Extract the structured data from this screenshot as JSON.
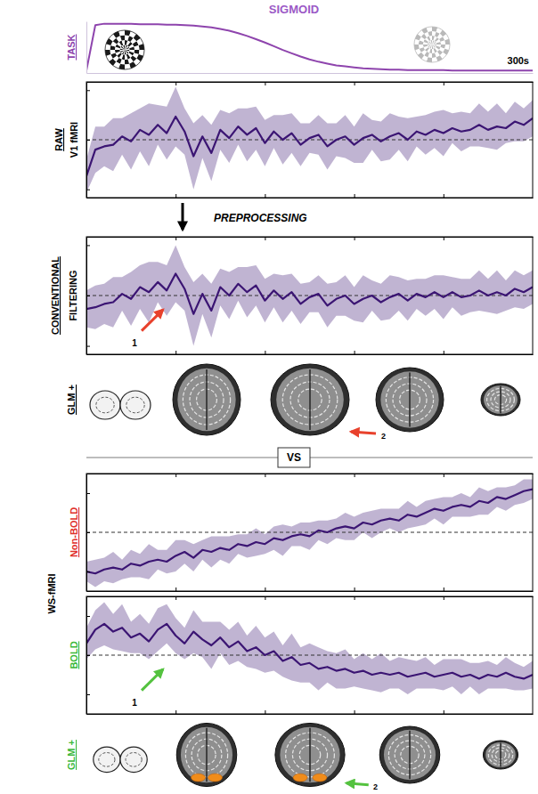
{
  "title": "SIGMOID",
  "labels": {
    "preprocessing": "PREPROCESSING",
    "vs": "VS",
    "ws_fmri": "WS-fMRI"
  },
  "chart_data": [
    {
      "type": "line",
      "y_label": [
        "TASK"
      ],
      "color": "#8e44ad",
      "tick_labels": false,
      "xlim": [
        0,
        300
      ],
      "ylim": [
        -0.05,
        1.05
      ],
      "x": [
        0,
        6,
        12,
        18,
        24,
        30,
        36,
        42,
        48,
        54,
        60,
        66,
        72,
        78,
        84,
        90,
        96,
        102,
        108,
        114,
        120,
        126,
        132,
        138,
        144,
        150,
        156,
        162,
        168,
        174,
        180,
        186,
        192,
        198,
        204,
        210,
        216,
        222,
        228,
        234,
        240,
        246,
        252,
        258,
        264,
        270,
        276,
        282,
        288,
        294,
        300
      ],
      "values": [
        0,
        0.97,
        1.0,
        1.0,
        1.0,
        1.0,
        0.99,
        0.99,
        0.99,
        0.98,
        0.98,
        0.97,
        0.96,
        0.94,
        0.92,
        0.89,
        0.85,
        0.8,
        0.74,
        0.67,
        0.6,
        0.52,
        0.44,
        0.37,
        0.3,
        0.24,
        0.19,
        0.15,
        0.11,
        0.09,
        0.07,
        0.05,
        0.04,
        0.03,
        0.02,
        0.02,
        0.01,
        0.01,
        0.01,
        0.01,
        0.01,
        0,
        0,
        0,
        0,
        0,
        0,
        0,
        0,
        0,
        0
      ],
      "annotations": [
        {
          "text": "300s"
        }
      ]
    },
    {
      "type": "line",
      "y_label": [
        "RAW",
        "V1 fMRI"
      ],
      "color": "#3b1573",
      "tick_labels": false,
      "xlim": [
        0,
        300
      ],
      "ylim": [
        -3.5,
        3.5
      ],
      "xticks": [
        60,
        120,
        180,
        240
      ],
      "yticks": [
        -3,
        0,
        3
      ],
      "baseline": 0,
      "x": [
        0,
        6,
        12,
        18,
        24,
        30,
        36,
        42,
        48,
        54,
        60,
        66,
        72,
        78,
        84,
        90,
        96,
        102,
        108,
        114,
        120,
        126,
        132,
        138,
        144,
        150,
        156,
        162,
        168,
        174,
        180,
        186,
        192,
        198,
        204,
        210,
        216,
        222,
        228,
        234,
        240,
        246,
        252,
        258,
        264,
        270,
        276,
        282,
        288,
        294,
        300
      ],
      "values": [
        -2.2,
        -0.6,
        -0.4,
        -0.3,
        0.2,
        -0.1,
        0.6,
        0.3,
        0.9,
        0.4,
        1.4,
        0.5,
        -1.0,
        0.2,
        -0.8,
        0.6,
        0.1,
        0.8,
        0.3,
        0.7,
        -0.2,
        0.5,
        0.0,
        0.4,
        -0.3,
        0.1,
        0.3,
        -0.4,
        0.0,
        0.2,
        -0.3,
        0.1,
        0.3,
        -0.1,
        0.2,
        0.4,
        0.0,
        0.5,
        0.3,
        0.6,
        0.4,
        0.7,
        0.5,
        0.6,
        0.9,
        0.6,
        0.8,
        0.7,
        1.1,
        0.9,
        1.3
      ],
      "error": [
        1.0,
        1.4,
        1.2,
        1.6,
        1.1,
        1.7,
        1.3,
        1.9,
        1.2,
        1.6,
        1.8,
        1.4,
        2.0,
        1.3,
        1.7,
        1.2,
        1.5,
        1.1,
        1.6,
        1.3,
        1.4,
        1.0,
        1.5,
        1.2,
        1.3,
        0.9,
        1.2,
        1.4,
        1.0,
        1.3,
        1.1,
        1.5,
        0.9,
        1.2,
        1.4,
        1.0,
        1.3,
        0.9,
        1.2,
        1.1,
        1.4,
        0.9,
        1.2,
        1.0,
        1.3,
        1.1,
        1.4,
        0.9,
        1.2,
        1.0,
        1.1
      ]
    },
    {
      "type": "line",
      "y_label": [
        "CONVENTIONAL",
        "FILTERING"
      ],
      "color": "#3b1573",
      "tick_labels": false,
      "xlim": [
        0,
        300
      ],
      "ylim": [
        -3.5,
        3.5
      ],
      "xticks": [
        60,
        120,
        180,
        240
      ],
      "yticks": [
        -3,
        0,
        3
      ],
      "baseline": 0,
      "x": [
        0,
        6,
        12,
        18,
        24,
        30,
        36,
        42,
        48,
        54,
        60,
        66,
        72,
        78,
        84,
        90,
        96,
        102,
        108,
        114,
        120,
        126,
        132,
        138,
        144,
        150,
        156,
        162,
        168,
        174,
        180,
        186,
        192,
        198,
        204,
        210,
        216,
        222,
        228,
        234,
        240,
        246,
        252,
        258,
        264,
        270,
        276,
        282,
        288,
        294,
        300
      ],
      "values": [
        -0.8,
        -0.7,
        -0.5,
        -0.4,
        0.1,
        -0.2,
        0.5,
        0.2,
        0.8,
        0.3,
        1.3,
        0.4,
        -1.1,
        0.1,
        -0.9,
        0.5,
        0.0,
        0.7,
        0.2,
        0.6,
        -0.3,
        0.3,
        -0.2,
        0.2,
        -0.5,
        -0.1,
        0.1,
        -0.6,
        -0.2,
        0.0,
        -0.5,
        -0.2,
        0.0,
        -0.4,
        -0.1,
        0.1,
        -0.3,
        0.1,
        -0.1,
        0.2,
        -0.1,
        0.2,
        -0.1,
        0.0,
        0.3,
        0.0,
        0.2,
        0.0,
        0.4,
        0.2,
        0.5
      ],
      "error": [
        1.1,
        1.3,
        1.2,
        1.5,
        1.0,
        1.6,
        1.3,
        1.8,
        1.2,
        1.5,
        1.7,
        1.3,
        1.9,
        1.2,
        1.6,
        1.1,
        1.4,
        1.0,
        1.5,
        1.2,
        1.3,
        1.0,
        1.4,
        1.1,
        1.2,
        0.9,
        1.1,
        1.3,
        1.0,
        1.2,
        1.0,
        1.4,
        0.9,
        1.1,
        1.3,
        1.0,
        1.2,
        0.9,
        1.1,
        1.0,
        1.3,
        0.9,
        1.1,
        1.0,
        1.2,
        1.0,
        1.3,
        0.9,
        1.1,
        1.0,
        1.0
      ],
      "annotations": [
        {
          "text": "1",
          "color": "#e8412c"
        }
      ]
    },
    {
      "type": "line",
      "y_label": [
        "Non-BOLD"
      ],
      "color": "#3b1573",
      "tick_labels": false,
      "xlim": [
        0,
        300
      ],
      "ylim": [
        -3,
        3
      ],
      "xticks": [
        60,
        120,
        180,
        240
      ],
      "yticks": [
        -2,
        0,
        2
      ],
      "baseline": 0,
      "x": [
        0,
        6,
        12,
        18,
        24,
        30,
        36,
        42,
        48,
        54,
        60,
        66,
        72,
        78,
        84,
        90,
        96,
        102,
        108,
        114,
        120,
        126,
        132,
        138,
        144,
        150,
        156,
        162,
        168,
        174,
        180,
        186,
        192,
        198,
        204,
        210,
        216,
        222,
        228,
        234,
        240,
        246,
        252,
        258,
        264,
        270,
        276,
        282,
        288,
        294,
        300
      ],
      "values": [
        -2.0,
        -2.1,
        -1.9,
        -1.8,
        -1.9,
        -1.6,
        -1.7,
        -1.5,
        -1.4,
        -1.5,
        -1.2,
        -1.0,
        -1.3,
        -0.9,
        -1.0,
        -0.8,
        -0.9,
        -0.6,
        -0.7,
        -0.5,
        -0.6,
        -0.3,
        -0.4,
        -0.2,
        -0.1,
        -0.2,
        0.1,
        0.0,
        0.2,
        0.3,
        0.2,
        0.5,
        0.4,
        0.6,
        0.7,
        0.6,
        0.9,
        0.8,
        1.0,
        1.2,
        1.1,
        1.3,
        1.4,
        1.3,
        1.6,
        1.5,
        1.8,
        1.7,
        1.9,
        2.1,
        2.2
      ],
      "error": [
        0.5,
        0.7,
        0.6,
        0.8,
        0.5,
        0.7,
        0.6,
        0.9,
        0.5,
        0.6,
        0.8,
        0.6,
        0.7,
        0.5,
        0.8,
        0.6,
        0.7,
        0.5,
        0.6,
        0.7,
        0.5,
        0.6,
        0.8,
        0.5,
        0.6,
        0.7,
        0.5,
        0.6,
        0.5,
        0.7,
        0.6,
        0.5,
        0.7,
        0.6,
        0.5,
        0.6,
        0.7,
        0.5,
        0.6,
        0.5,
        0.7,
        0.5,
        0.6,
        0.5,
        0.7,
        0.6,
        0.5,
        0.6,
        0.5,
        0.6,
        0.5
      ]
    },
    {
      "type": "line",
      "y_label": [
        "BOLD"
      ],
      "color": "#3b1573",
      "tick_labels": false,
      "xlim": [
        0,
        300
      ],
      "ylim": [
        -3,
        3
      ],
      "xticks": [
        60,
        120,
        180,
        240
      ],
      "yticks": [
        -2,
        0,
        2
      ],
      "baseline": 0,
      "x": [
        0,
        6,
        12,
        18,
        24,
        30,
        36,
        42,
        48,
        54,
        60,
        66,
        72,
        78,
        84,
        90,
        96,
        102,
        108,
        114,
        120,
        126,
        132,
        138,
        144,
        150,
        156,
        162,
        168,
        174,
        180,
        186,
        192,
        198,
        204,
        210,
        216,
        222,
        228,
        234,
        240,
        246,
        252,
        258,
        264,
        270,
        276,
        282,
        288,
        294,
        300
      ],
      "values": [
        0.6,
        1.3,
        1.6,
        1.2,
        1.4,
        0.9,
        1.1,
        0.7,
        1.3,
        1.6,
        1.0,
        0.6,
        1.2,
        0.8,
        0.5,
        0.9,
        0.4,
        0.7,
        0.2,
        0.4,
        0.0,
        0.2,
        -0.3,
        -0.1,
        -0.5,
        -0.4,
        -0.7,
        -0.6,
        -0.8,
        -0.7,
        -0.9,
        -0.8,
        -1.0,
        -0.9,
        -1.0,
        -0.9,
        -1.1,
        -1.0,
        -0.9,
        -1.1,
        -1.0,
        -0.9,
        -1.1,
        -1.0,
        -1.2,
        -1.0,
        -1.1,
        -0.9,
        -1.1,
        -1.2,
        -1.0
      ],
      "error": [
        0.8,
        1.0,
        1.1,
        0.9,
        1.2,
        0.8,
        1.0,
        0.9,
        1.1,
        1.0,
        0.9,
        0.8,
        1.1,
        0.9,
        1.2,
        0.8,
        0.9,
        1.0,
        0.8,
        1.1,
        0.9,
        1.0,
        0.8,
        1.2,
        0.9,
        1.0,
        1.1,
        0.8,
        0.9,
        1.0,
        0.7,
        0.9,
        0.8,
        1.0,
        0.7,
        0.8,
        0.9,
        0.7,
        0.8,
        0.6,
        0.8,
        0.7,
        0.9,
        0.6,
        0.8,
        0.7,
        0.6,
        0.8,
        0.7,
        0.6,
        0.7
      ],
      "annotations": [
        {
          "text": "1",
          "color": "#54c23f"
        }
      ]
    }
  ],
  "glm_maps": [
    {
      "label": "GLM +",
      "activation": false,
      "annotation": {
        "text": "2",
        "color": "#e8412c"
      }
    },
    {
      "label": "GLM +",
      "activation": true,
      "annotation": {
        "text": "2",
        "color": "#54c23f"
      }
    }
  ]
}
